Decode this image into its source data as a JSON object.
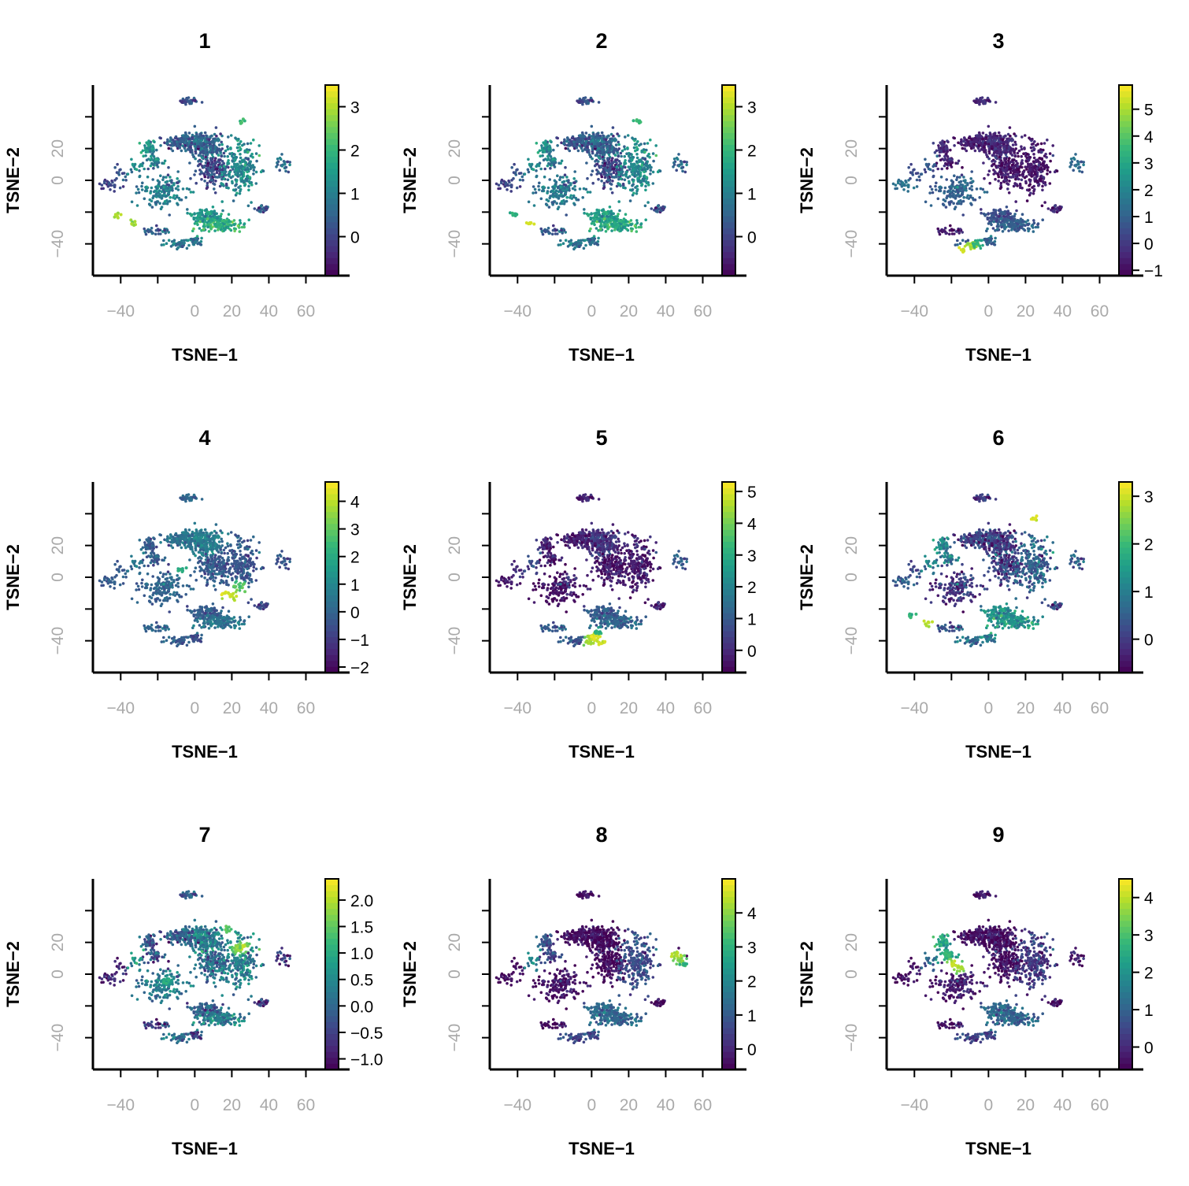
{
  "colors": {
    "viridis": [
      "#440154",
      "#482878",
      "#3e4989",
      "#31688e",
      "#26828e",
      "#1f9e89",
      "#35b779",
      "#6ece58",
      "#b5de2b",
      "#fde725"
    ],
    "axis": "#000000",
    "tick_label": "#aaaaaa"
  },
  "chart_data": [
    {
      "type": "scatter",
      "title": "1",
      "xlabel": "TSNE−1",
      "ylabel": "TSNE−2",
      "xlim": [
        -55,
        70
      ],
      "ylim": [
        -60,
        60
      ],
      "xticks": [
        -40,
        0,
        20,
        40,
        60
      ],
      "yticks": [
        -40,
        0,
        20
      ],
      "colorbar": {
        "min": -0.9,
        "max": 3.5,
        "ticks": [
          0,
          1,
          2,
          3
        ],
        "tick_labels": [
          "0",
          "1",
          "2",
          "3"
        ]
      },
      "cluster_values": [
        0.1,
        0.4,
        0.5,
        1.3,
        1.0,
        0.1,
        1.2,
        1.0,
        0.3,
        0.6,
        0.0,
        0.3,
        0.5,
        1.4,
        1.8,
        0.9,
        0.9,
        1.2,
        0.3
      ],
      "hotspots": [
        {
          "x": -42,
          "y": -22,
          "value": 3.2
        },
        {
          "x": -33,
          "y": -27,
          "value": 3.0
        },
        {
          "x": 25,
          "y": 37,
          "value": 2.3
        }
      ]
    },
    {
      "type": "scatter",
      "title": "2",
      "xlabel": "TSNE−1",
      "ylabel": "TSNE−2",
      "xlim": [
        -55,
        70
      ],
      "ylim": [
        -60,
        60
      ],
      "xticks": [
        -40,
        0,
        20,
        40,
        60
      ],
      "yticks": [
        -40,
        0,
        20
      ],
      "colorbar": {
        "min": -0.9,
        "max": 3.5,
        "ticks": [
          0,
          1,
          2,
          3
        ],
        "tick_labels": [
          "0",
          "1",
          "2",
          "3"
        ]
      },
      "cluster_values": [
        0.1,
        0.3,
        0.5,
        1.2,
        0.9,
        0.1,
        1.2,
        0.9,
        0.2,
        0.5,
        0.0,
        0.3,
        0.4,
        1.5,
        1.7,
        0.9,
        0.8,
        1.1,
        0.2
      ],
      "hotspots": [
        {
          "x": -42,
          "y": -22,
          "value": 2.0
        },
        {
          "x": -33,
          "y": -27,
          "value": 3.3
        },
        {
          "x": 25,
          "y": 37,
          "value": 2.2
        }
      ]
    },
    {
      "type": "scatter",
      "title": "3",
      "xlabel": "TSNE−1",
      "ylabel": "TSNE−2",
      "xlim": [
        -55,
        70
      ],
      "ylim": [
        -60,
        60
      ],
      "xticks": [
        -40,
        0,
        20,
        40,
        60
      ],
      "yticks": [
        -40,
        0,
        20
      ],
      "colorbar": {
        "min": -1.2,
        "max": 5.9,
        "ticks": [
          -1,
          0,
          1,
          2,
          3,
          4,
          5
        ],
        "tick_labels": [
          "−1",
          "0",
          "1",
          "2",
          "3",
          "4",
          "5"
        ]
      },
      "cluster_values": [
        -0.4,
        -0.6,
        -0.4,
        -0.4,
        -0.6,
        -0.7,
        -0.7,
        1.0,
        -0.4,
        1.2,
        1.5,
        0.5,
        -0.6,
        0.5,
        0.9,
        0.8,
        1.2,
        0.8,
        1.5
      ],
      "hotspots": [
        {
          "x": -13,
          "y": -44,
          "value": 5.6
        },
        {
          "x": -9,
          "y": -42,
          "value": 5.3
        },
        {
          "x": -6,
          "y": -41,
          "value": 3.6
        }
      ]
    },
    {
      "type": "scatter",
      "title": "4",
      "xlabel": "TSNE−1",
      "ylabel": "TSNE−2",
      "xlim": [
        -55,
        70
      ],
      "ylim": [
        -60,
        60
      ],
      "xticks": [
        -40,
        0,
        20,
        40,
        60
      ],
      "yticks": [
        -40,
        0,
        20
      ],
      "colorbar": {
        "min": -2.2,
        "max": 4.7,
        "ticks": [
          -2,
          -1,
          0,
          1,
          2,
          3,
          4
        ],
        "tick_labels": [
          "−2",
          "−1",
          "0",
          "1",
          "2",
          "3",
          "4"
        ]
      },
      "cluster_values": [
        0.0,
        0.4,
        0.7,
        -0.3,
        -0.2,
        -0.2,
        -0.3,
        0.0,
        -0.7,
        -0.5,
        -0.2,
        -0.2,
        0.1,
        -0.2,
        0.4,
        -0.1,
        -0.4,
        0.5,
        0.2
      ],
      "hotspots": [
        {
          "x": 17,
          "y": -10,
          "value": 4.5
        },
        {
          "x": 21,
          "y": -12,
          "value": 4.2
        },
        {
          "x": 24,
          "y": -6,
          "value": 3.1
        },
        {
          "x": -7,
          "y": 5,
          "value": 2.2
        }
      ]
    },
    {
      "type": "scatter",
      "title": "5",
      "xlabel": "TSNE−1",
      "ylabel": "TSNE−2",
      "xlim": [
        -55,
        70
      ],
      "ylim": [
        -60,
        60
      ],
      "xticks": [
        -40,
        0,
        20,
        40,
        60
      ],
      "yticks": [
        -40,
        0,
        20
      ],
      "colorbar": {
        "min": -0.7,
        "max": 5.3,
        "ticks": [
          0,
          1,
          2,
          3,
          4,
          5
        ],
        "tick_labels": [
          "0",
          "1",
          "2",
          "3",
          "4",
          "5"
        ]
      },
      "cluster_values": [
        -0.2,
        -0.2,
        0.2,
        -0.2,
        -0.3,
        -0.3,
        -0.2,
        -0.4,
        -0.1,
        1.0,
        -0.3,
        0.1,
        1.1,
        1.0,
        1.2,
        1.0,
        0.9,
        0.7,
        0.4
      ],
      "hotspots": [
        {
          "x": 2,
          "y": -38,
          "value": 5.2
        },
        {
          "x": 5,
          "y": -41,
          "value": 5.0
        },
        {
          "x": -1,
          "y": -41,
          "value": 4.6
        },
        {
          "x": 3,
          "y": -35,
          "value": 3.3
        }
      ]
    },
    {
      "type": "scatter",
      "title": "6",
      "xlabel": "TSNE−1",
      "ylabel": "TSNE−2",
      "xlim": [
        -55,
        70
      ],
      "ylim": [
        -60,
        60
      ],
      "xticks": [
        -40,
        0,
        20,
        40,
        60
      ],
      "yticks": [
        -40,
        0,
        20
      ],
      "colorbar": {
        "min": -0.7,
        "max": 3.3,
        "ticks": [
          0,
          1,
          2,
          3
        ],
        "tick_labels": [
          "0",
          "1",
          "2",
          "3"
        ]
      },
      "cluster_values": [
        -0.1,
        0.1,
        0.0,
        1.1,
        0.9,
        0.1,
        0.6,
        -0.1,
        0.2,
        0.4,
        0.5,
        0.2,
        0.4,
        1.3,
        1.3,
        0.8,
        1.1,
        1.1,
        0.3
      ],
      "hotspots": [
        {
          "x": 25,
          "y": 37,
          "value": 3.2
        },
        {
          "x": -42,
          "y": -24,
          "value": 2.1
        },
        {
          "x": -33,
          "y": -29,
          "value": 3.0
        }
      ]
    },
    {
      "type": "scatter",
      "title": "7",
      "xlabel": "TSNE−1",
      "ylabel": "TSNE−2",
      "xlim": [
        -55,
        70
      ],
      "ylim": [
        -60,
        60
      ],
      "xticks": [
        -40,
        0,
        20,
        40,
        60
      ],
      "yticks": [
        -40,
        0,
        20
      ],
      "colorbar": {
        "min": -1.2,
        "max": 2.4,
        "ticks": [
          -1.0,
          -0.5,
          0.0,
          0.5,
          1.0,
          1.5,
          2.0
        ],
        "tick_labels": [
          "−1.0",
          "−0.5",
          "0.0",
          "0.5",
          "1.0",
          "1.5",
          "2.0"
        ]
      },
      "cluster_values": [
        -0.2,
        -0.1,
        0.3,
        -0.3,
        -0.3,
        0.1,
        0.4,
        0.3,
        -0.6,
        -0.7,
        -0.8,
        -0.8,
        -0.5,
        -0.1,
        0.3,
        0.2,
        -0.4,
        0.7,
        -0.1
      ],
      "hotspots": [
        {
          "x": 26,
          "y": 17,
          "value": 2.2
        },
        {
          "x": 23,
          "y": 16,
          "value": 2.0
        },
        {
          "x": 18,
          "y": 28,
          "value": 1.6
        },
        {
          "x": -15,
          "y": -4,
          "value": 1.2
        }
      ]
    },
    {
      "type": "scatter",
      "title": "8",
      "xlabel": "TSNE−1",
      "ylabel": "TSNE−2",
      "xlim": [
        -55,
        70
      ],
      "ylim": [
        -60,
        60
      ],
      "xticks": [
        -40,
        0,
        20,
        40,
        60
      ],
      "yticks": [
        -40,
        0,
        20
      ],
      "colorbar": {
        "min": -0.6,
        "max": 5.0,
        "ticks": [
          0,
          1,
          2,
          3,
          4
        ],
        "tick_labels": [
          "0",
          "1",
          "2",
          "3",
          "4"
        ]
      },
      "cluster_values": [
        -0.4,
        -0.4,
        -0.5,
        0.8,
        0.5,
        -0.5,
        0.8,
        -0.3,
        -0.5,
        -0.4,
        -0.4,
        -0.4,
        -0.4,
        1.3,
        1.2,
        0.7,
        0.8,
        2.0,
        -0.3
      ],
      "hotspots": [
        {
          "x": 46,
          "y": 12,
          "value": 4.5
        },
        {
          "x": 48,
          "y": 8,
          "value": 4.2
        },
        {
          "x": 50,
          "y": 6,
          "value": 3.0
        }
      ]
    },
    {
      "type": "scatter",
      "title": "9",
      "xlabel": "TSNE−1",
      "ylabel": "TSNE−2",
      "xlim": [
        -55,
        70
      ],
      "ylim": [
        -60,
        60
      ],
      "xticks": [
        -40,
        0,
        20,
        40,
        60
      ],
      "yticks": [
        -40,
        0,
        20
      ],
      "colorbar": {
        "min": -0.6,
        "max": 4.5,
        "ticks": [
          0,
          1,
          2,
          3,
          4
        ],
        "tick_labels": [
          "0",
          "1",
          "2",
          "3",
          "4"
        ]
      },
      "cluster_values": [
        -0.3,
        -0.4,
        -0.4,
        2.4,
        2.0,
        -0.4,
        0.3,
        -0.2,
        -0.4,
        -0.3,
        -0.4,
        -0.3,
        -0.3,
        1.1,
        1.0,
        0.5,
        0.6,
        1.1,
        -0.2
      ],
      "hotspots": [
        {
          "x": -19,
          "y": 6,
          "value": 4.2
        },
        {
          "x": -16,
          "y": 4,
          "value": 4.0
        },
        {
          "x": -23,
          "y": 12,
          "value": 3.0
        }
      ]
    }
  ]
}
